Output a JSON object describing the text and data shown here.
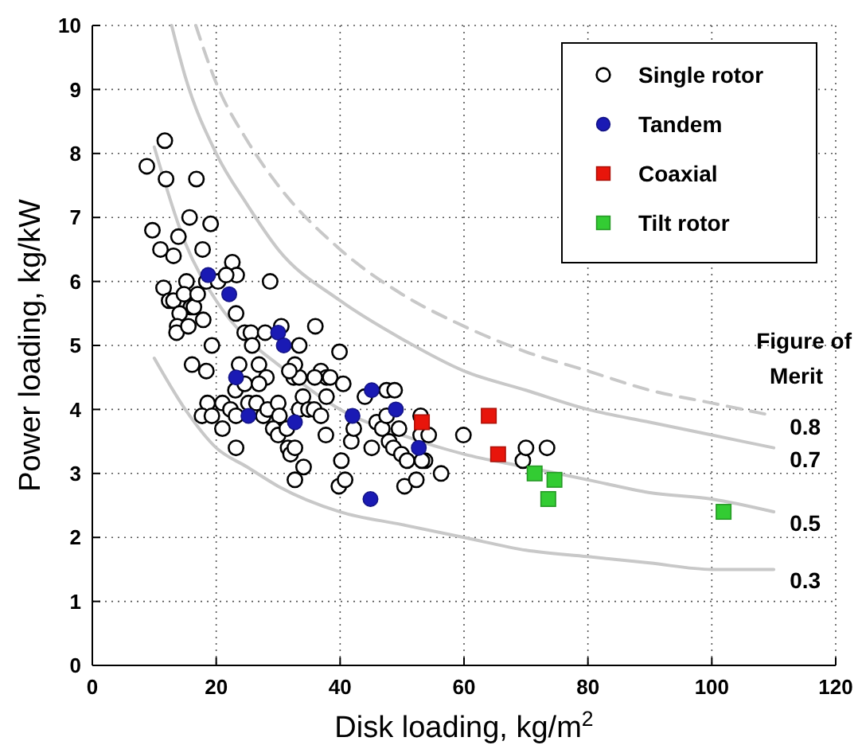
{
  "chart_data": {
    "type": "scatter",
    "xlabel": "Disk loading, kg/m$^{2}$",
    "ylabel": "Power loading, kg/kW",
    "xlim": [
      0,
      120
    ],
    "ylim": [
      0,
      10
    ],
    "xticks": [
      0,
      20,
      40,
      60,
      80,
      100,
      120
    ],
    "yticks": [
      0,
      1,
      2,
      3,
      4,
      5,
      6,
      7,
      8,
      9,
      10
    ],
    "grid": true,
    "legend": "top right",
    "annotations": [
      "Figure of Merit"
    ],
    "series": [
      {
        "type": "line",
        "name": "0.8",
        "color": "#c8c8c8",
        "line_style": "dashed",
        "x": [
          16.7,
          20,
          25,
          30,
          40,
          50,
          60,
          70,
          80,
          90,
          100,
          110
        ],
        "values": [
          10.0,
          9.1,
          8.2,
          7.5,
          6.5,
          5.8,
          5.3,
          4.9,
          4.6,
          4.3,
          4.1,
          3.9
        ]
      },
      {
        "type": "line",
        "name": "0.7",
        "color": "#c8c8c8",
        "line_style": "solid",
        "x": [
          12.8,
          15,
          20,
          25,
          30,
          40,
          50,
          60,
          70,
          80,
          90,
          100,
          110
        ],
        "values": [
          10.0,
          9.2,
          8.0,
          7.2,
          6.5,
          5.7,
          5.1,
          4.6,
          4.3,
          4.0,
          3.8,
          3.6,
          3.4
        ]
      },
      {
        "type": "line",
        "name": "0.5",
        "color": "#c8c8c8",
        "line_style": "solid",
        "x": [
          10,
          15,
          20,
          25,
          30,
          40,
          50,
          60,
          70,
          80,
          90,
          100,
          110
        ],
        "values": [
          8.1,
          6.6,
          5.7,
          5.1,
          4.7,
          4.0,
          3.6,
          3.3,
          3.1,
          2.9,
          2.7,
          2.6,
          2.4
        ]
      },
      {
        "type": "line",
        "name": "0.3",
        "color": "#c8c8c8",
        "line_style": "solid",
        "x": [
          10,
          15,
          20,
          25,
          30,
          40,
          50,
          60,
          70,
          80,
          90,
          100,
          110
        ],
        "values": [
          4.8,
          4.0,
          3.4,
          3.1,
          2.8,
          2.4,
          2.2,
          2.0,
          1.8,
          1.7,
          1.6,
          1.5,
          1.5
        ]
      },
      {
        "name": "Single rotor",
        "color": "#000000",
        "marker": "circle",
        "x": [
          8.8,
          11.7,
          11.9,
          16.8,
          9.7,
          11.0,
          13.9,
          13.1,
          15.7,
          19.1,
          17.8,
          11.5,
          12.4,
          13.1,
          15.2,
          14.8,
          15.9,
          16.4,
          14.1,
          13.7,
          13.6,
          15.5,
          17.0,
          17.9,
          18.4,
          20.3,
          22.6,
          23.3,
          21.6,
          19.3,
          23.2,
          16.1,
          18.4,
          24.6,
          25.6,
          25.8,
          27.9,
          28.7,
          30.5,
          33.4,
          36.0,
          39.9,
          23.7,
          23.1,
          24.6,
          26.9,
          28.1,
          26.9,
          18.6,
          17.7,
          19.3,
          21.0,
          21.0,
          22.3,
          23.2,
          23.2,
          25.2,
          26.5,
          27.6,
          28.3,
          30.0,
          30.2,
          29.2,
          30.0,
          31.4,
          31.6,
          32.0,
          32.7,
          34.1,
          32.7,
          33.4,
          34.0,
          34.9,
          35.8,
          32.5,
          33.4,
          32.7,
          31.8,
          36.9,
          37.8,
          38.4,
          35.9,
          37.8,
          36.9,
          37.7,
          40.5,
          40.2,
          39.8,
          40.8,
          41.8,
          42.2,
          45.1,
          44.0,
          45.9,
          46.8,
          47.5,
          47.9,
          48.6,
          47.5,
          48.8,
          49.5,
          49.9,
          50.8,
          50.4,
          52.3,
          53.0,
          53.0,
          54.3,
          53.7,
          53.2,
          56.3,
          59.9,
          69.5,
          70.0,
          73.4
        ],
        "values": [
          7.8,
          8.2,
          7.6,
          7.6,
          6.8,
          6.5,
          6.7,
          6.4,
          7.0,
          6.9,
          6.5,
          5.9,
          5.7,
          5.7,
          6.0,
          5.8,
          5.6,
          5.6,
          5.5,
          5.3,
          5.2,
          5.3,
          5.8,
          5.4,
          6.0,
          6.0,
          6.3,
          6.1,
          6.1,
          5.0,
          5.5,
          4.7,
          4.6,
          5.2,
          5.2,
          5.0,
          5.2,
          6.0,
          5.3,
          5.0,
          5.3,
          4.9,
          4.7,
          4.3,
          4.4,
          4.7,
          4.5,
          4.4,
          4.1,
          3.9,
          3.9,
          4.1,
          3.7,
          4.0,
          3.9,
          3.4,
          4.1,
          4.1,
          3.9,
          4.0,
          4.1,
          3.9,
          3.7,
          3.6,
          3.7,
          3.4,
          3.3,
          3.4,
          3.1,
          2.9,
          4.0,
          4.2,
          4.0,
          4.0,
          4.5,
          4.5,
          4.7,
          4.6,
          4.6,
          4.5,
          4.5,
          4.5,
          4.2,
          3.9,
          3.6,
          4.4,
          3.2,
          2.8,
          2.9,
          3.5,
          3.7,
          3.4,
          4.2,
          3.8,
          3.7,
          3.9,
          3.5,
          3.4,
          4.3,
          4.3,
          3.7,
          3.3,
          3.2,
          2.8,
          2.9,
          3.9,
          3.6,
          3.6,
          3.2,
          3.2,
          3.0,
          3.6,
          3.2,
          3.4,
          3.4
        ]
      },
      {
        "name": "Tandem",
        "color": "#1a1ab4",
        "marker": "circle",
        "x": [
          18.7,
          22.1,
          23.2,
          25.2,
          30.0,
          30.9,
          32.7,
          42.0,
          45.1,
          49.0,
          44.9,
          52.7
        ],
        "values": [
          6.1,
          5.8,
          4.5,
          3.9,
          5.2,
          5.0,
          3.8,
          3.9,
          4.3,
          4.0,
          2.6,
          3.4
        ]
      },
      {
        "name": "Coaxial",
        "color": "#e8150b",
        "marker": "square",
        "x": [
          53.2,
          64.0,
          65.5
        ],
        "values": [
          3.8,
          3.9,
          3.3
        ]
      },
      {
        "name": "Tilt rotor",
        "color": "#33cc33",
        "marker": "square",
        "x": [
          71.4,
          74.6,
          73.6,
          101.9
        ],
        "values": [
          3.0,
          2.9,
          2.6,
          2.4
        ]
      }
    ]
  }
}
